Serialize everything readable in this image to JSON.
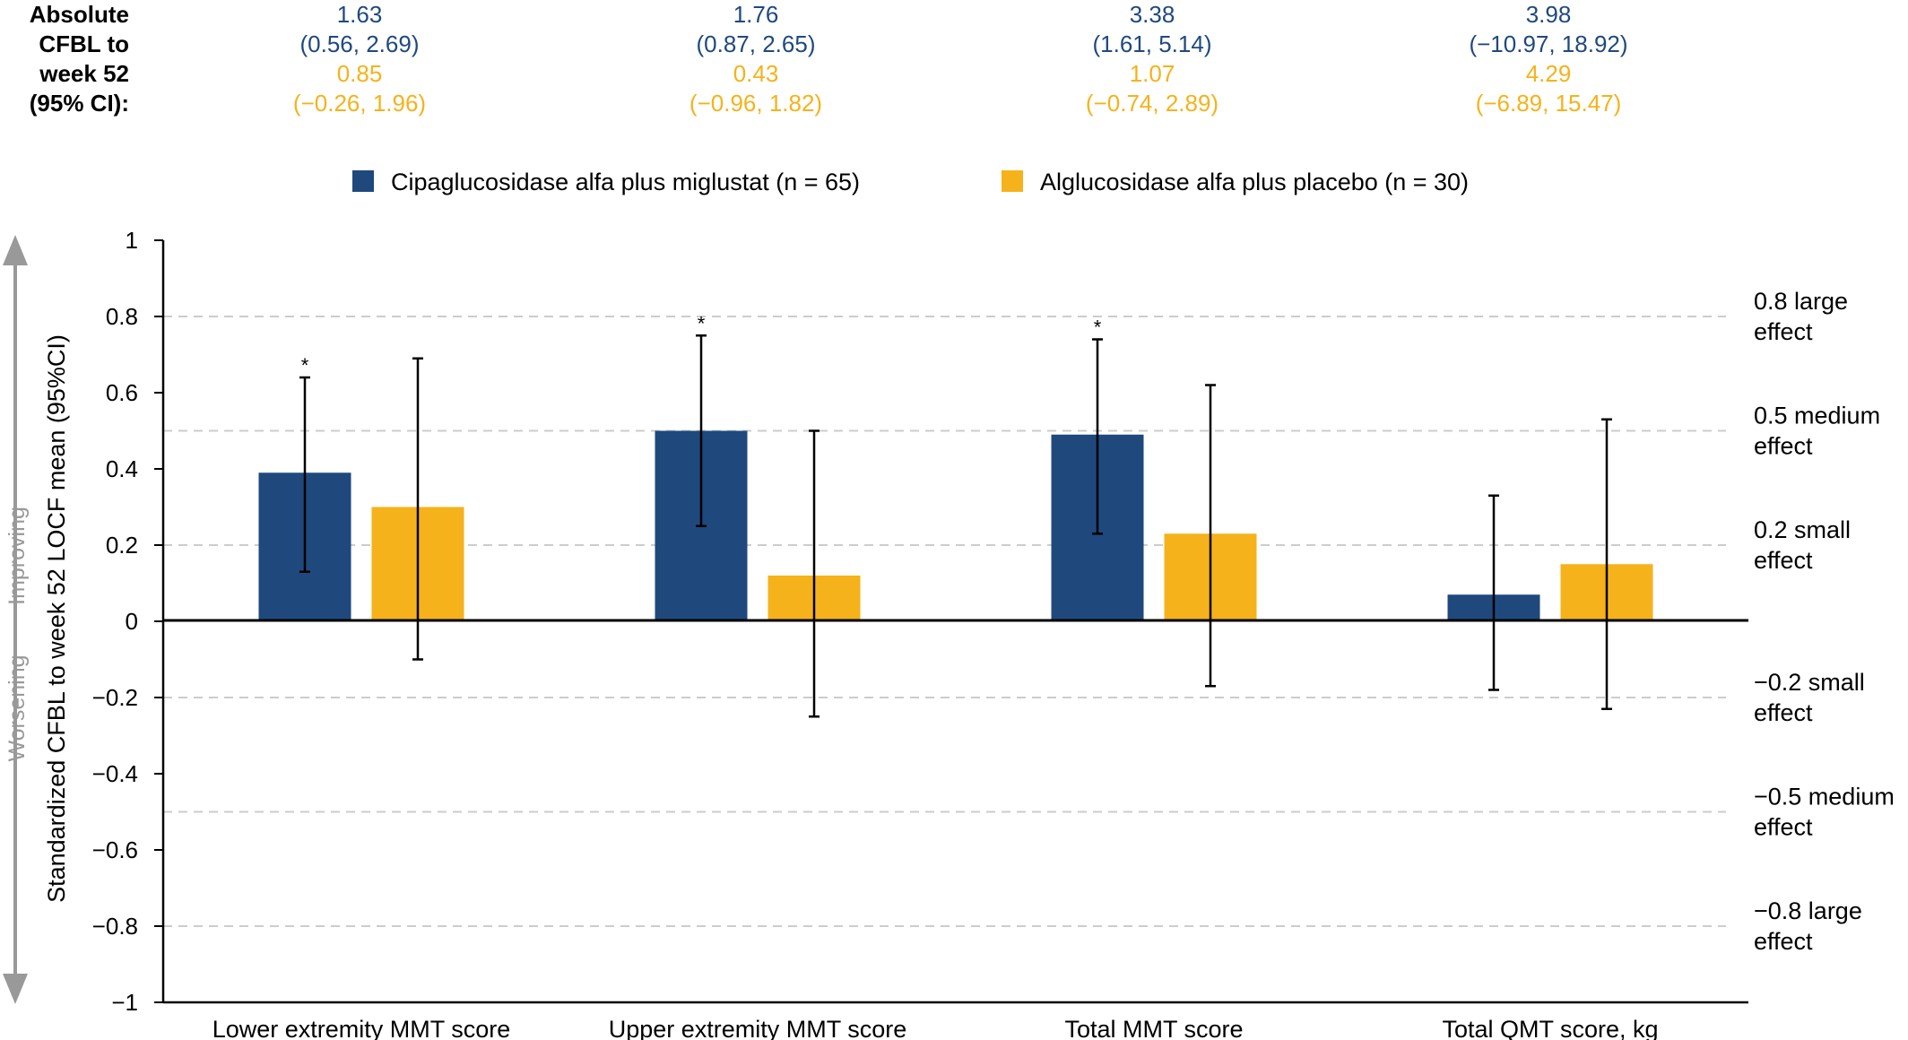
{
  "chart_data": {
    "type": "bar",
    "categories": [
      "Lower extremity MMT score",
      "Upper extremity MMT score",
      "Total MMT score",
      "Total QMT score, kg"
    ],
    "series": [
      {
        "name": "Cipaglucosidase alfa plus miglustat (n = 65)",
        "color": "#1f497d",
        "values": [
          0.39,
          0.5,
          0.49,
          0.07
        ],
        "ci_low": [
          0.13,
          0.25,
          0.23,
          -0.18
        ],
        "ci_high": [
          0.64,
          0.75,
          0.74,
          0.33
        ],
        "significant": [
          true,
          true,
          true,
          false
        ],
        "abs_mean": [
          "1.63",
          "1.76",
          "3.38",
          "3.98"
        ],
        "abs_ci": [
          "(0.56, 2.69)",
          "(0.87, 2.65)",
          "(1.61, 5.14)",
          "(−10.97, 18.92)"
        ]
      },
      {
        "name": "Alglucosidase alfa plus placebo (n = 30)",
        "color": "#f5b21b",
        "values": [
          0.3,
          0.12,
          0.23,
          0.15
        ],
        "ci_low": [
          -0.1,
          -0.25,
          -0.17,
          -0.23
        ],
        "ci_high": [
          0.69,
          0.5,
          0.62,
          0.53
        ],
        "significant": [
          false,
          false,
          false,
          false
        ],
        "abs_mean": [
          "0.85",
          "0.43",
          "1.07",
          "4.29"
        ],
        "abs_ci": [
          "(−0.26, 1.96)",
          "(−0.96, 1.82)",
          "(−0.74, 2.89)",
          "(−6.89, 15.47)"
        ]
      }
    ],
    "significance_marker": "*",
    "ylabel": "Standardized CFBL to week 52 LOCF mean (95%CI)",
    "ylim": [
      -1,
      1
    ],
    "yticks": [
      {
        "v": 1,
        "label": "1"
      },
      {
        "v": 0.8,
        "label": "0.8"
      },
      {
        "v": 0.6,
        "label": "0.6"
      },
      {
        "v": 0.4,
        "label": "0.4"
      },
      {
        "v": 0.2,
        "label": "0.2"
      },
      {
        "v": 0,
        "label": "0"
      },
      {
        "v": -0.2,
        "label": "−0.2"
      },
      {
        "v": -0.4,
        "label": "−0.4"
      },
      {
        "v": -0.6,
        "label": "−0.6"
      },
      {
        "v": -0.8,
        "label": "−0.8"
      },
      {
        "v": -1,
        "label": "−1"
      }
    ],
    "reference_lines": [
      {
        "v": 0.8,
        "label1": "0.8 large",
        "label2": "effect"
      },
      {
        "v": 0.5,
        "label1": "0.5 medium",
        "label2": "effect"
      },
      {
        "v": 0.2,
        "label1": "0.2 small",
        "label2": "effect"
      },
      {
        "v": -0.2,
        "label1": "−0.2 small",
        "label2": "effect"
      },
      {
        "v": -0.5,
        "label1": "−0.5 medium",
        "label2": "effect"
      },
      {
        "v": -0.8,
        "label1": "−0.8 large",
        "label2": "effect"
      }
    ],
    "direction_labels": {
      "up": "Improving",
      "down": "Worsening"
    },
    "abs_header": [
      "Absolute",
      "CFBL to",
      "week 52",
      "(95% CI):"
    ],
    "legend_position": "top",
    "grid": false
  }
}
